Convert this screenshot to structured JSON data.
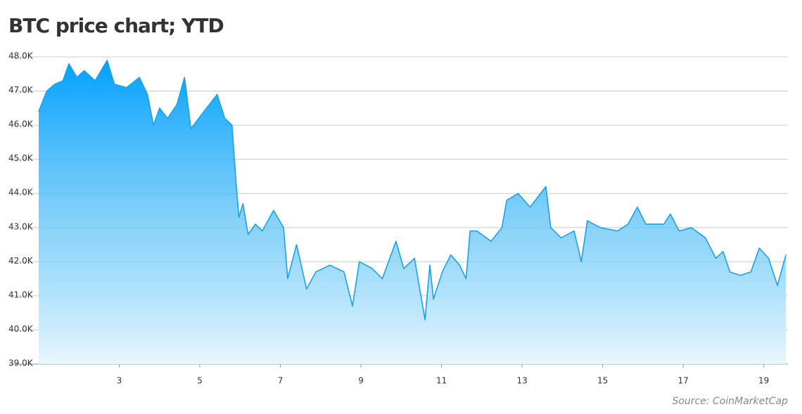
{
  "chart_data": {
    "type": "area",
    "title": "BTC price chart; YTD",
    "source": "Source: CoinMarketCap",
    "color": "#1ba1e8",
    "grid": true,
    "xlim": [
      1,
      19.6
    ],
    "xticks": [
      3,
      5,
      7,
      9,
      11,
      13,
      15,
      17,
      19
    ],
    "ylim": [
      39000,
      48000
    ],
    "yticks": [
      {
        "value": 39000,
        "label": "39.0K"
      },
      {
        "value": 40000,
        "label": "40.0K"
      },
      {
        "value": 41000,
        "label": "41.0K"
      },
      {
        "value": 42000,
        "label": "42.0K"
      },
      {
        "value": 43000,
        "label": "43.0K"
      },
      {
        "value": 44000,
        "label": "44.0K"
      },
      {
        "value": 45000,
        "label": "45.0K"
      },
      {
        "value": 46000,
        "label": "46.0K"
      },
      {
        "value": 47000,
        "label": "47.0K"
      },
      {
        "value": 48000,
        "label": "48.0K"
      }
    ],
    "x": [
      1.0,
      1.2,
      1.4,
      1.6,
      1.75,
      1.95,
      2.13,
      2.4,
      2.7,
      2.88,
      3.18,
      3.5,
      3.7,
      3.85,
      4.0,
      4.2,
      4.43,
      4.62,
      4.78,
      5.1,
      5.43,
      5.62,
      5.8,
      5.9,
      5.97,
      6.07,
      6.2,
      6.38,
      6.55,
      6.83,
      7.08,
      7.18,
      7.4,
      7.65,
      7.88,
      8.23,
      8.58,
      8.79,
      8.96,
      9.28,
      9.53,
      9.87,
      10.06,
      10.33,
      10.59,
      10.71,
      10.8,
      11.02,
      11.23,
      11.45,
      11.61,
      11.71,
      11.88,
      12.23,
      12.5,
      12.62,
      12.9,
      13.2,
      13.59,
      13.71,
      13.97,
      14.29,
      14.47,
      14.62,
      14.95,
      15.37,
      15.63,
      15.86,
      16.07,
      16.52,
      16.68,
      16.9,
      17.2,
      17.55,
      17.81,
      17.99,
      18.16,
      18.42,
      18.68,
      18.89,
      19.12,
      19.34,
      19.55
    ],
    "values": [
      46400,
      47000,
      47200,
      47300,
      47800,
      47400,
      47600,
      47300,
      47900,
      47200,
      47100,
      47400,
      46900,
      46000,
      46500,
      46200,
      46600,
      47400,
      45900,
      46400,
      46900,
      46200,
      46000,
      44300,
      43300,
      43700,
      42800,
      43100,
      42900,
      43500,
      43000,
      41500,
      42500,
      41200,
      41700,
      41900,
      41700,
      40700,
      42000,
      41800,
      41500,
      42600,
      41800,
      42100,
      40300,
      41900,
      40900,
      41700,
      42200,
      41900,
      41500,
      42900,
      42900,
      42600,
      43000,
      43800,
      44000,
      43600,
      44200,
      43000,
      42700,
      42900,
      42000,
      43200,
      43000,
      42900,
      43100,
      43600,
      43100,
      43100,
      43400,
      42900,
      43000,
      42700,
      42100,
      42300,
      41700,
      41600,
      41700,
      42400,
      42100,
      41300,
      42200
    ]
  }
}
